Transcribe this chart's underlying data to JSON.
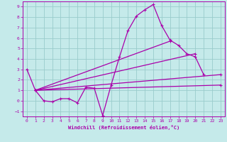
{
  "xlabel": "Windchill (Refroidissement éolien,°C)",
  "bg_color": "#c5eaea",
  "line_color": "#aa00aa",
  "grid_color": "#99cccc",
  "xlim": [
    -0.5,
    23.5
  ],
  "ylim": [
    -1.5,
    9.5
  ],
  "xticks": [
    0,
    1,
    2,
    3,
    4,
    5,
    6,
    7,
    8,
    9,
    10,
    11,
    12,
    13,
    14,
    15,
    16,
    17,
    18,
    19,
    20,
    21,
    22,
    23
  ],
  "yticks": [
    -1,
    0,
    1,
    2,
    3,
    4,
    5,
    6,
    7,
    8,
    9
  ],
  "curve1": {
    "x": [
      0,
      1,
      2,
      3,
      4,
      5,
      6,
      7,
      8,
      9,
      10,
      11,
      12,
      13,
      14,
      15,
      16,
      17,
      18,
      19,
      20,
      21
    ],
    "y": [
      3,
      1,
      0,
      -0.1,
      0.2,
      0.2,
      -0.2,
      1.3,
      1.2,
      -1.4,
      1.5,
      4.2,
      6.7,
      8.1,
      8.7,
      9.2,
      7.2,
      5.8,
      5.3,
      4.5,
      4.2,
      2.5
    ]
  },
  "line_a": {
    "x": [
      1,
      23
    ],
    "y": [
      1,
      1.5
    ]
  },
  "line_b": {
    "x": [
      1,
      17
    ],
    "y": [
      1,
      5.7
    ]
  },
  "line_c": {
    "x": [
      1,
      20
    ],
    "y": [
      1,
      4.5
    ]
  },
  "line_d": {
    "x": [
      1,
      23
    ],
    "y": [
      1,
      2.5
    ]
  }
}
